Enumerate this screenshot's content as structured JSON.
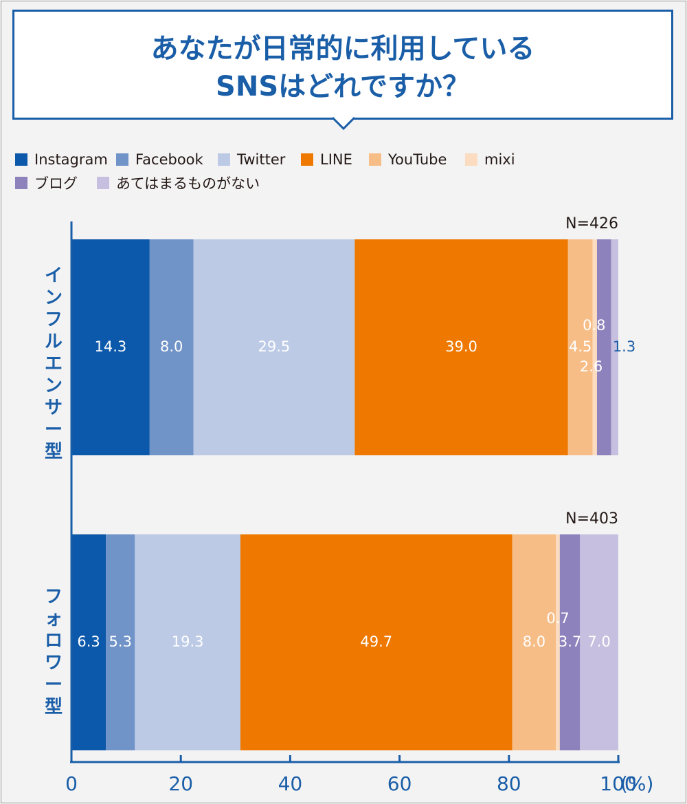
{
  "title": {
    "line1": "あなたが日常的に利用している",
    "line2": "SNSはどれですか？"
  },
  "colors": {
    "accent": "#1a5ea8",
    "axis": "#1a5ea8",
    "instagram": "#0c58aa",
    "facebook": "#7093c8",
    "twitter": "#bccae6",
    "line": "#ee7800",
    "youtube": "#f7bd86",
    "mixi": "#fbdcc0",
    "blog": "#8e82bd",
    "none": "#c6bfdf"
  },
  "chart_data": {
    "type": "bar",
    "orientation": "horizontal",
    "stacked": true,
    "title": "あなたが日常的に利用している SNSはどれですか？",
    "xlim": [
      0,
      100
    ],
    "xticks": [
      "0",
      "20",
      "40",
      "60",
      "80",
      "100"
    ],
    "xunit": "(%)",
    "grid": false,
    "legend_position": "top-left",
    "series": [
      {
        "name": "Instagram",
        "colorKey": "instagram"
      },
      {
        "name": "Facebook",
        "colorKey": "facebook"
      },
      {
        "name": "Twitter",
        "colorKey": "twitter"
      },
      {
        "name": "LINE",
        "colorKey": "line"
      },
      {
        "name": "YouTube",
        "colorKey": "youtube"
      },
      {
        "name": "mixi",
        "colorKey": "mixi"
      },
      {
        "name": "ブログ",
        "colorKey": "blog"
      },
      {
        "name": "あてはまるものがない",
        "colorKey": "none"
      }
    ],
    "categories": [
      {
        "label": "インフルエンサー型",
        "n": "N=426",
        "values": [
          14.3,
          8.0,
          29.5,
          39.0,
          4.5,
          0.8,
          2.6,
          1.3
        ],
        "value_labels": [
          "14.3",
          "8.0",
          "29.5",
          "39.0",
          "4.5",
          "0.8",
          "2.6",
          "1.3"
        ]
      },
      {
        "label": "フォロワー型",
        "n": "N=403",
        "values": [
          6.3,
          5.3,
          19.3,
          49.7,
          8.0,
          0.7,
          3.7,
          7.0
        ],
        "value_labels": [
          "6.3",
          "5.3",
          "19.3",
          "49.7",
          "8.0",
          "0.7",
          "3.7",
          "7.0"
        ]
      }
    ]
  }
}
